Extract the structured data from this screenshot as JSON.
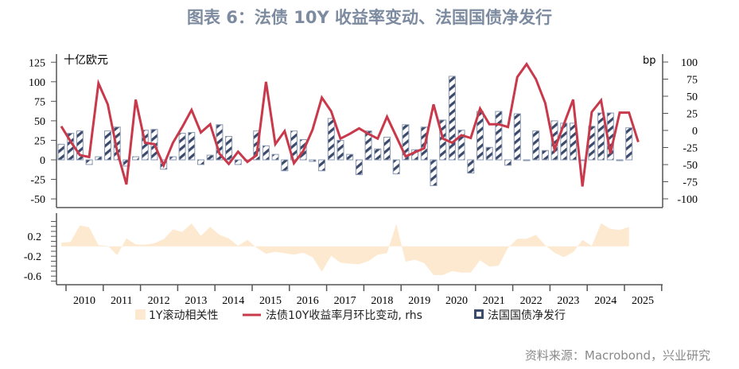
{
  "title": "图表 6：法债 10Y 收益率变动、法国国债净发行",
  "source": "资料来源：Macrobond，兴业研究",
  "chart_data": [
    {
      "type": "bar+line",
      "panel": "top",
      "left_unit_label": "十亿欧元",
      "right_unit_label": "bp",
      "left_ylim": [
        -60,
        135
      ],
      "left_ticks": [
        "125",
        "100",
        "75",
        "50",
        "25",
        "0",
        "-25",
        "-50"
      ],
      "left_tick_values": [
        125,
        100,
        75,
        50,
        25,
        0,
        -25,
        -50
      ],
      "right_ylim": [
        -115,
        110
      ],
      "right_ticks": [
        "100",
        "75",
        "50",
        "25",
        "0",
        "-25",
        "-50",
        "-75",
        "-100"
      ],
      "right_tick_values": [
        100,
        75,
        50,
        25,
        0,
        -25,
        -50,
        -75,
        -100
      ],
      "x_start": "2009Q4",
      "series": [
        {
          "name": "法国国债净发行",
          "axis": "left",
          "kind": "bar",
          "values": [
            20,
            34,
            37,
            -6,
            4,
            37,
            42,
            -8,
            4,
            38,
            39,
            -12,
            4,
            34,
            35,
            -6,
            6,
            45,
            30,
            -6,
            -1,
            37,
            18,
            7,
            -14,
            37,
            26,
            -2,
            -14,
            53,
            25,
            7,
            -19,
            37,
            14,
            29,
            -18,
            45,
            13,
            42,
            -33,
            51,
            107,
            38,
            -17,
            62,
            16,
            62,
            -7,
            59,
            -1,
            37,
            12,
            50,
            47,
            47,
            -1,
            43,
            60,
            60,
            -1,
            41,
            null
          ]
        },
        {
          "name": "法债10Y收益率月环比变动, rhs",
          "axis": "right",
          "kind": "line",
          "values": [
            6,
            -16,
            -36,
            -39,
            69,
            38,
            -30,
            -79,
            45,
            -18,
            -20,
            -51,
            -18,
            5,
            30,
            -3,
            9,
            -34,
            -49,
            -31,
            -46,
            -36,
            71,
            -20,
            -1,
            -48,
            -30,
            1,
            48,
            28,
            -12,
            -5,
            3,
            -5,
            -12,
            20,
            -9,
            -38,
            -32,
            -26,
            38,
            -12,
            -18,
            -7,
            -11,
            32,
            9,
            9,
            5,
            78,
            97,
            75,
            40,
            -28,
            9,
            45,
            -82,
            27,
            44,
            -34,
            26,
            26,
            -17
          ]
        }
      ]
    },
    {
      "type": "area",
      "panel": "bottom",
      "ylim": [
        -0.75,
        0.6
      ],
      "ticks": [
        "0.2",
        "-0.2",
        "-0.6"
      ],
      "tick_values": [
        0.2,
        -0.2,
        -0.6
      ],
      "series": [
        {
          "name": "1Y滚动相关性",
          "values": [
            0.07,
            0.09,
            0.42,
            0.38,
            0.02,
            0.01,
            -0.18,
            0.16,
            0.04,
            0.03,
            0.06,
            0.14,
            0.34,
            0.29,
            0.46,
            0.21,
            0.39,
            0.23,
            0.16,
            0.01,
            0.13,
            -0.03,
            -0.15,
            -0.11,
            -0.14,
            -0.17,
            -0.13,
            -0.22,
            -0.51,
            -0.19,
            -0.33,
            -0.35,
            -0.36,
            -0.3,
            -0.17,
            -0.14,
            0.45,
            -0.31,
            -0.27,
            -0.34,
            -0.58,
            -0.58,
            -0.5,
            -0.53,
            -0.53,
            -0.28,
            -0.41,
            -0.39,
            -0.03,
            0.15,
            0.15,
            0.23,
            0.02,
            -0.13,
            -0.22,
            -0.12,
            0.13,
            0.01,
            0.46,
            0.35,
            0.33,
            0.39
          ]
        }
      ]
    }
  ],
  "x_labels": [
    "2010",
    "2011",
    "2012",
    "2013",
    "2014",
    "2015",
    "2016",
    "2017",
    "2018",
    "2019",
    "2020",
    "2021",
    "2022",
    "2023",
    "2024",
    "2025"
  ],
  "legend": [
    "1Y滚动相关性",
    "法债10Y收益率月环比变动, rhs",
    "法国国债净发行"
  ],
  "colors": {
    "bar_stroke": "#8a97b0",
    "bar_hatch": "#3b4a6b",
    "line": "#c8394b",
    "area": "#fde9cf",
    "title": "#7d8ba0"
  }
}
